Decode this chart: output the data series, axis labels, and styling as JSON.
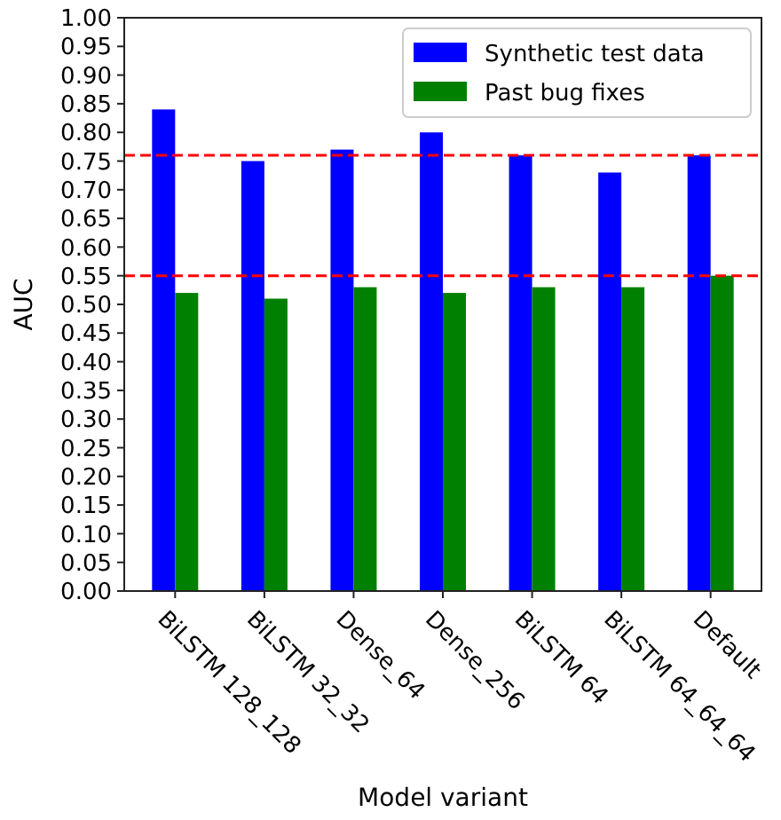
{
  "chart_data": {
    "type": "bar",
    "xlabel": "Model variant",
    "ylabel": "AUC",
    "categories": [
      "BiLSTM 128_128",
      "BiLSTM 32_32",
      "Dense_64",
      "Dense_256",
      "BiLSTM 64",
      "BiLSTM 64_64_64",
      "Default"
    ],
    "series": [
      {
        "name": "Synthetic test data",
        "color": "#0000ff",
        "values": [
          0.84,
          0.75,
          0.77,
          0.8,
          0.76,
          0.73,
          0.76
        ]
      },
      {
        "name": "Past bug fixes",
        "color": "#008000",
        "values": [
          0.52,
          0.51,
          0.53,
          0.52,
          0.53,
          0.53,
          0.55
        ]
      }
    ],
    "ylim": [
      0,
      1
    ],
    "yticks": [
      {
        "value": 0,
        "label": "0.00"
      },
      {
        "value": 0.05,
        "label": "0.05"
      },
      {
        "value": 0.1,
        "label": "0.10"
      },
      {
        "value": 0.15,
        "label": "0.15"
      },
      {
        "value": 0.2,
        "label": "0.20"
      },
      {
        "value": 0.25,
        "label": "0.25"
      },
      {
        "value": 0.3,
        "label": "0.30"
      },
      {
        "value": 0.35,
        "label": "0.35"
      },
      {
        "value": 0.4,
        "label": "0.40"
      },
      {
        "value": 0.45,
        "label": "0.45"
      },
      {
        "value": 0.5,
        "label": "0.50"
      },
      {
        "value": 0.55,
        "label": "0.55"
      },
      {
        "value": 0.6,
        "label": "0.60"
      },
      {
        "value": 0.65,
        "label": "0.65"
      },
      {
        "value": 0.7,
        "label": "0.70"
      },
      {
        "value": 0.75,
        "label": "0.75"
      },
      {
        "value": 0.8,
        "label": "0.80"
      },
      {
        "value": 0.85,
        "label": "0.85"
      },
      {
        "value": 0.9,
        "label": "0.90"
      },
      {
        "value": 0.95,
        "label": "0.95"
      },
      {
        "value": 1,
        "label": "1.00"
      }
    ],
    "ref_lines": [
      {
        "axis": "y",
        "value": 0.76,
        "color": "#ff0000",
        "line_style": "dashed"
      },
      {
        "axis": "y",
        "value": 0.55,
        "color": "#ff0000",
        "line_style": "dashed"
      }
    ],
    "legend": "top right",
    "grid": false
  }
}
